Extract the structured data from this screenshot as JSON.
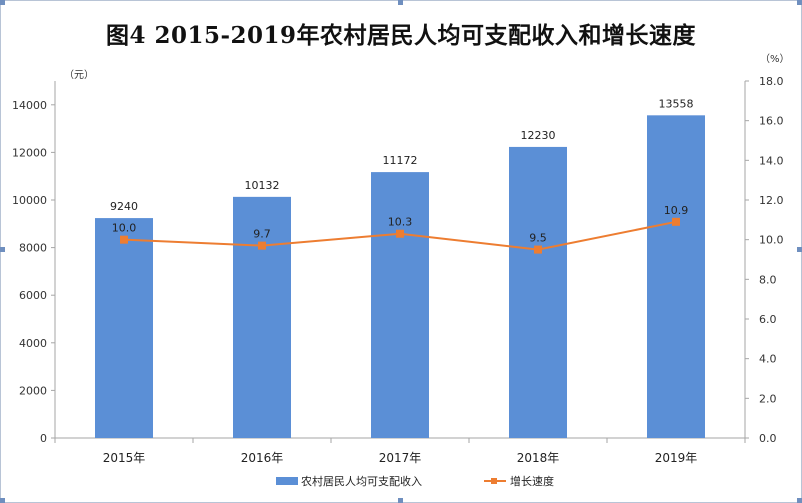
{
  "chart_data": {
    "type": "bar",
    "title": "图4  2015-2019年农村居民人均可支配收入和增长速度",
    "categories": [
      "2015年",
      "2016年",
      "2017年",
      "2018年",
      "2019年"
    ],
    "series": [
      {
        "name": "农村居民人均可支配收入",
        "type": "bar",
        "axis": "left",
        "color": "#5b8fd6",
        "values": [
          9240,
          10132,
          11172,
          12230,
          13558
        ]
      },
      {
        "name": "增长速度",
        "type": "line",
        "axis": "right",
        "color": "#ed7d31",
        "values": [
          10.0,
          9.7,
          10.3,
          9.5,
          10.9
        ],
        "labels": [
          "10.0",
          "9.7",
          "10.3",
          "9.5",
          "10.9"
        ]
      }
    ],
    "y_left": {
      "unit": "（元）",
      "ylim": [
        0,
        15000
      ],
      "ticks": [
        "0",
        "2000",
        "4000",
        "6000",
        "8000",
        "10000",
        "12000",
        "14000"
      ]
    },
    "y_right": {
      "unit": "（%）",
      "ylim": [
        0,
        18
      ],
      "ticks": [
        "0.0",
        "2.0",
        "4.0",
        "6.0",
        "8.0",
        "10.0",
        "12.0",
        "14.0",
        "16.0",
        "18.0"
      ]
    },
    "grid": false,
    "legend": "bottom"
  }
}
